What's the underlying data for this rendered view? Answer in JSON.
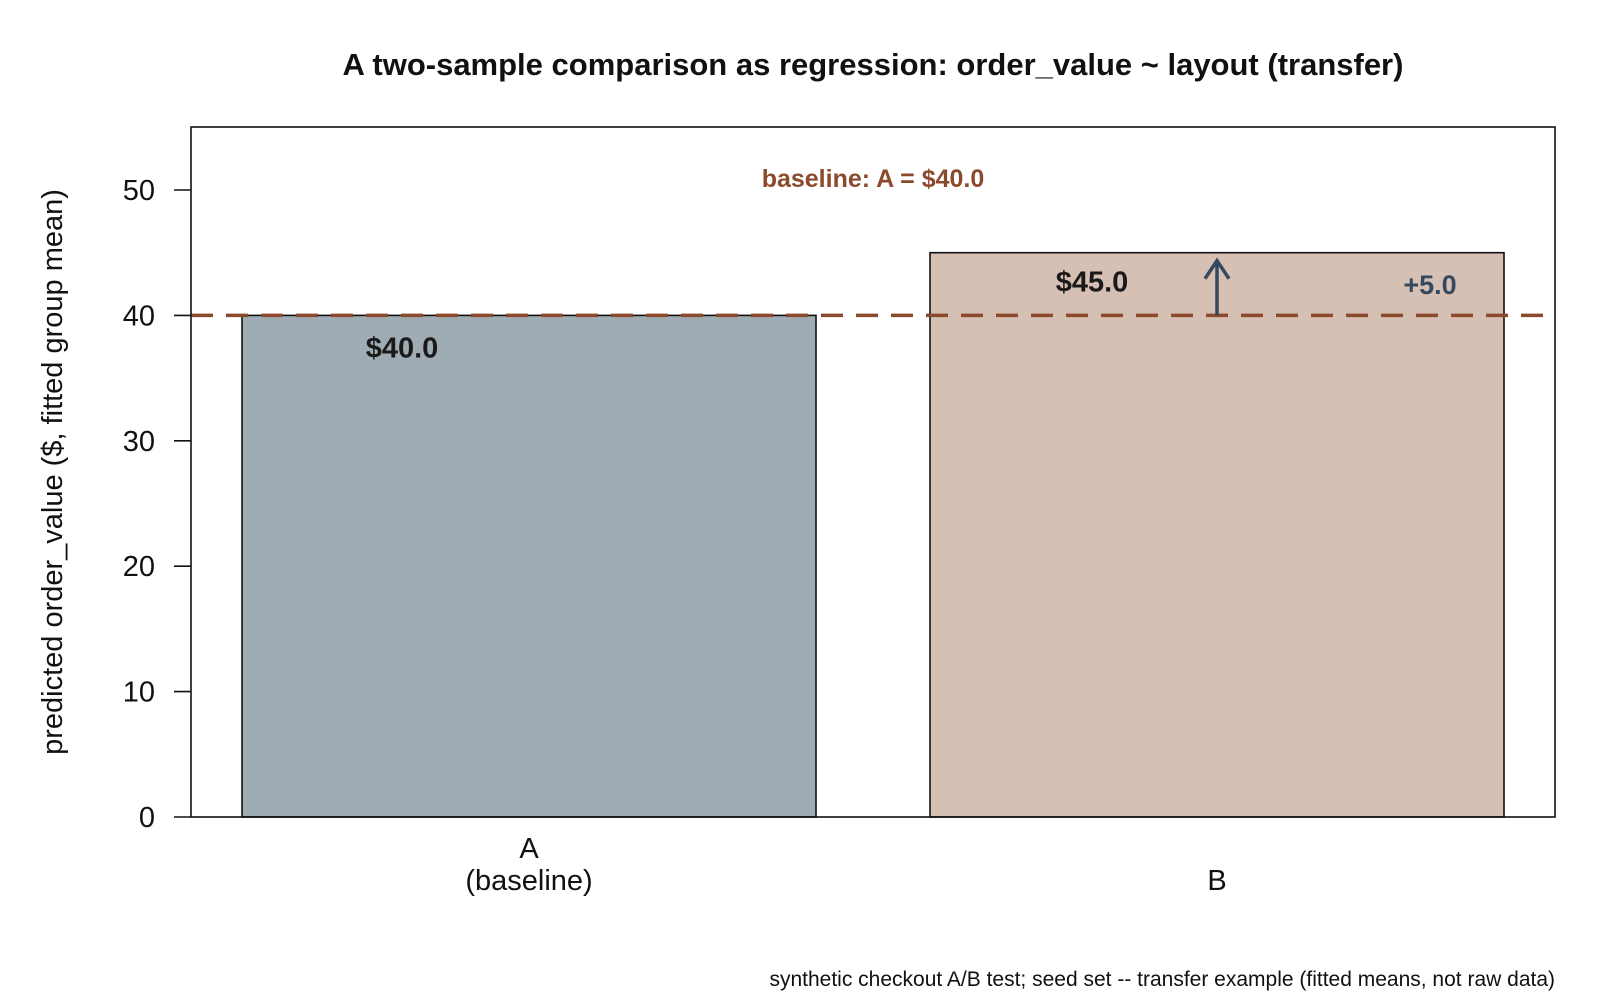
{
  "chart_data": {
    "type": "bar",
    "title": "A two-sample comparison as regression: order_value ~ layout (transfer)",
    "ylabel": "predicted order_value ($, fitted group mean)",
    "xlabel": "",
    "ylim": [
      0,
      55
    ],
    "yticks": [
      0,
      10,
      20,
      30,
      40,
      50
    ],
    "categories": [
      "A",
      "B"
    ],
    "category_labels": [
      [
        "A",
        "(baseline)"
      ],
      [
        "B"
      ]
    ],
    "values": [
      40.0,
      45.0
    ],
    "bar_value_labels": [
      "$40.0",
      "$45.0"
    ],
    "bar_colors": [
      "#a0acb3",
      "#d6bfb3"
    ],
    "baseline": {
      "value": 40.0,
      "label": "baseline: A = $40.0",
      "color": "#8b4a2b",
      "style": "dashed"
    },
    "difference": {
      "from": 40.0,
      "to": 45.0,
      "label": "+5.0",
      "color": "#34495e"
    },
    "grid": false,
    "legend": "none",
    "caption": "synthetic checkout A/B test; seed set -- transfer example (fitted means, not raw data)"
  }
}
